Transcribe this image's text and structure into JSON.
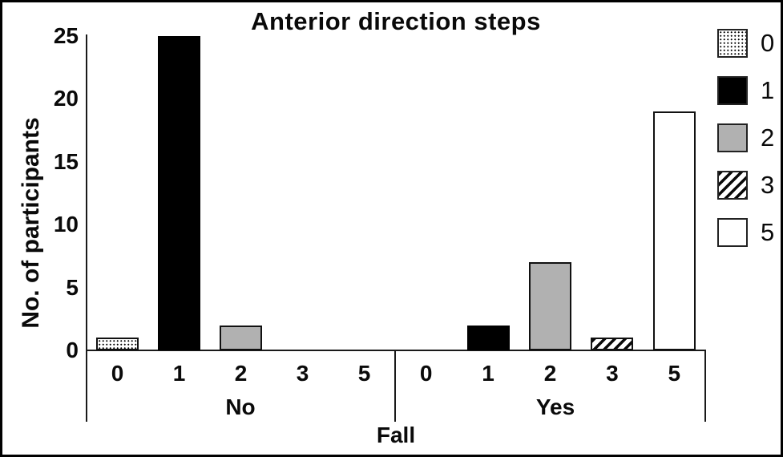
{
  "window": {
    "background": "#ffffff",
    "frame_border_color": "#000000"
  },
  "chart_data": {
    "type": "bar",
    "title": "Anterior direction steps",
    "ylabel": "No. of participants",
    "xlabel": "Fall",
    "ylim": [
      0,
      25
    ],
    "y_ticks": [
      0,
      5,
      10,
      15,
      20,
      25
    ],
    "grid": "off",
    "groups": [
      "No",
      "Yes"
    ],
    "step_categories": [
      "0",
      "1",
      "2",
      "3",
      "5"
    ],
    "series": [
      {
        "name": "0",
        "pattern": "dots",
        "values": [
          1,
          0
        ]
      },
      {
        "name": "1",
        "pattern": "solid-black",
        "values": [
          25,
          2
        ]
      },
      {
        "name": "2",
        "pattern": "gray",
        "values": [
          2,
          7
        ]
      },
      {
        "name": "3",
        "pattern": "diagonal-hatch",
        "values": [
          0,
          1
        ]
      },
      {
        "name": "5",
        "pattern": "white",
        "values": [
          0,
          19
        ]
      }
    ],
    "legend": {
      "position": "right",
      "entries": [
        "0",
        "1",
        "2",
        "3",
        "5"
      ]
    },
    "colors": {
      "black": "#000000",
      "gray": "#b1b1b1",
      "white": "#ffffff",
      "axis": "#1a1a1a"
    }
  }
}
